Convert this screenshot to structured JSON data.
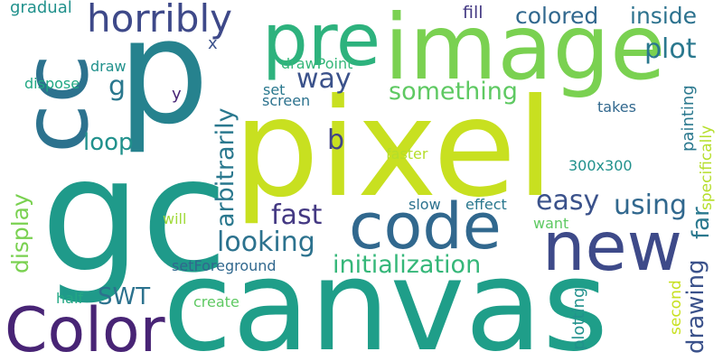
{
  "words": [
    {
      "text": "pixel",
      "color": "#c8e020"
    },
    {
      "text": "canvas",
      "color": "#1f9e89"
    },
    {
      "text": "gc",
      "color": "#1f9a8a"
    },
    {
      "text": "p",
      "color": "#26828e"
    },
    {
      "text": "cc",
      "color": "#2c728e"
    },
    {
      "text": "image",
      "color": "#7ad151"
    },
    {
      "text": "pre",
      "color": "#2db27d"
    },
    {
      "text": "code",
      "color": "#31688e"
    },
    {
      "text": "new",
      "color": "#3e4a89"
    },
    {
      "text": "Color",
      "color": "#482475"
    },
    {
      "text": "horribly",
      "color": "#3e4989"
    },
    {
      "text": "colored",
      "color": "#31688e"
    },
    {
      "text": "inside",
      "color": "#2c728e"
    },
    {
      "text": "plot",
      "color": "#2a788e"
    },
    {
      "text": "way",
      "color": "#3b528b"
    },
    {
      "text": "something",
      "color": "#5ec962"
    },
    {
      "text": "g",
      "color": "#2a788e"
    },
    {
      "text": "loop",
      "color": "#21918c"
    },
    {
      "text": "b",
      "color": "#414487"
    },
    {
      "text": "fast",
      "color": "#443983"
    },
    {
      "text": "easy",
      "color": "#3b528b"
    },
    {
      "text": "using",
      "color": "#31688e"
    },
    {
      "text": "looking",
      "color": "#2c728e"
    },
    {
      "text": "initialization",
      "color": "#35b779"
    },
    {
      "text": "SWT",
      "color": "#2c728e"
    },
    {
      "text": "arbitrarily",
      "color": "#2a788e"
    },
    {
      "text": "display",
      "color": "#7ad151"
    },
    {
      "text": "drawing",
      "color": "#3b528b"
    },
    {
      "text": "far",
      "color": "#2a788e"
    },
    {
      "text": "painting",
      "color": "#2a788e"
    },
    {
      "text": "specifically",
      "color": "#b5de2b"
    },
    {
      "text": "gradual",
      "color": "#21918c"
    },
    {
      "text": "fill",
      "color": "#443983"
    },
    {
      "text": "x",
      "color": "#3b528b"
    },
    {
      "text": "draw",
      "color": "#21918c"
    },
    {
      "text": "drawPoint",
      "color": "#35b779"
    },
    {
      "text": "dispose",
      "color": "#22a884"
    },
    {
      "text": "y",
      "color": "#482475"
    },
    {
      "text": "set",
      "color": "#2a788e"
    },
    {
      "text": "screen",
      "color": "#2c728e"
    },
    {
      "text": "takes",
      "color": "#31688e"
    },
    {
      "text": "faster",
      "color": "#b5de2b"
    },
    {
      "text": "300x300",
      "color": "#21918c"
    },
    {
      "text": "slow",
      "color": "#2c728e"
    },
    {
      "text": "effect",
      "color": "#2a788e"
    },
    {
      "text": "will",
      "color": "#a0da39"
    },
    {
      "text": "want",
      "color": "#5ec962"
    },
    {
      "text": "setForeground",
      "color": "#31688e"
    },
    {
      "text": "half",
      "color": "#22a884"
    },
    {
      "text": "create",
      "color": "#5ec962"
    },
    {
      "text": "plotting",
      "color": "#21918c"
    },
    {
      "text": "second",
      "color": "#c8e020"
    }
  ]
}
